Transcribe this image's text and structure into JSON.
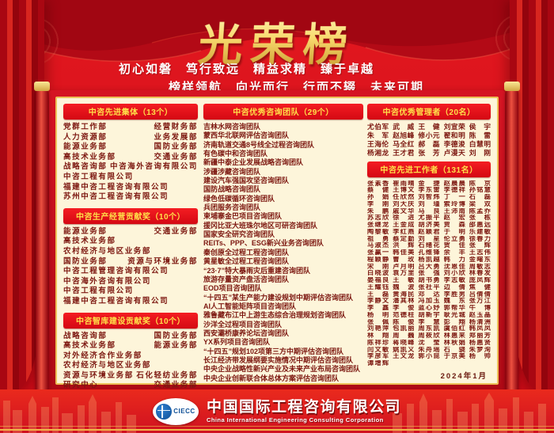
{
  "title": "光荣榜",
  "slogan_line1": "初心如磐　笃行致远　精益求精　臻于卓越",
  "slogan_line2": "榜样领航　向光而行　行而不辍　未来可期",
  "date": "2024年1月",
  "colors": {
    "background_red": "#d60f1c",
    "panel_cream": "#fdf5da",
    "pill_red": "#e60914",
    "pill_text_yellow": "#ffe049",
    "body_text_maroon": "#7c1710",
    "gold_frame": "#ecc158",
    "logo_blue": "#0e4f96"
  },
  "sections": {
    "advanced_groups": {
      "header": "中咨先进集体（13个）",
      "rows": [
        [
          "党群工作部",
          "经营财务部"
        ],
        [
          "人力资源部",
          "业务发展部"
        ],
        [
          "能源业务部",
          "国防业务部"
        ],
        [
          "高技术业务部",
          "交通业务部"
        ],
        [
          "战略咨询部",
          "中咨海外咨询有限公司"
        ],
        [
          "中咨工程有限公司"
        ],
        [
          "福建中咨工程咨询有限公司"
        ],
        [
          "苏州中咨工程咨询有限公司"
        ]
      ]
    },
    "production_award": {
      "header": "中咨生产经营贡献奖（10个）",
      "rows": [
        [
          "能源业务部",
          "交通业务部"
        ],
        [
          "高技术业务部"
        ],
        [
          "农村经济与地区业务部"
        ],
        [
          "国防业务部",
          "资源与环境业务部"
        ],
        [
          "中咨工程管理咨询有限公司"
        ],
        [
          "中咨海外咨询有限公司"
        ],
        [
          "中咨工程有限公司"
        ],
        [
          "福建中咨工程咨询有限公司"
        ]
      ]
    },
    "thinktank_award": {
      "header": "中咨智库建设贡献奖（10个）",
      "rows": [
        [
          "战略咨询部",
          "国防业务部"
        ],
        [
          "高技术业务部",
          "能源业务部"
        ],
        [
          "对外经济合作业务部"
        ],
        [
          "农村经济与地区业务部"
        ],
        [
          "资源与环境业务部",
          "石化轻纺业务部"
        ],
        [
          "研究中心",
          "交通业务部"
        ]
      ]
    },
    "excellent_teams": {
      "header": "中咨优秀咨询团队（29个）",
      "items": [
        "吉林水网咨询团队",
        "蒙西华北联网评估咨询团队",
        "济南轨道交通8号线全过程咨询团队",
        "有色碳中和咨询团队",
        "新疆中泰企业发展战略咨询团队",
        "涉疆涉藏咨询团队",
        "建设汽车强国攻坚咨询团队",
        "国防战略咨询团队",
        "绿色低碳循环咨询团队",
        "兵团服务咨询团队",
        "柬埔寨金巴项目咨询团队",
        "援冈比亚大班珠尔地区可研咨询团队",
        "国家安全研究咨询团队",
        "REITs、PPP、ESG新兴业务咨询团队",
        "秦创原全过程工程咨询团队",
        "黄星敏全过程工程咨询团队",
        "“23·7”特大暴雨灾后重建咨询团队",
        "旅游存量资产盘活咨询团队",
        "EOD项目咨询团队",
        "“十四五”某生产能力建设规划中期评估咨询团队",
        "AI人工智能矩阵项目咨询团队",
        "雅鲁藏布江中上游生态综合治理规划咨询团队",
        "沙洋全过程项目咨询团队",
        "西安灞桥康养论坛咨询团队",
        "YX系列项目咨询团队",
        "“十四五”规划102项第三方中期评估咨询团队",
        "长江经济带发展纲要实施情况中期评估咨询团队",
        "中央企业战略性新兴产业及未来产业布局咨询团队",
        "中央企业创新联合体总体方案评估咨询团队"
      ]
    },
    "excellent_managers": {
      "header": "中咨优秀管理者（20名）",
      "names": [
        "尤伯军",
        "武威",
        "王健",
        "刘宣荣",
        "侯宇",
        "朱军",
        "赵旭峰",
        "修小元",
        "翟和明",
        "陈雷",
        "王海伦",
        "马全红",
        "郝磊",
        "李德浚",
        "白慧明",
        "杨湘龙",
        "王才君",
        "张芳",
        "卢漫天",
        "刘刚"
      ]
    },
    "advanced_workers": {
      "header": "中咨先进工作者（131名）",
      "names": [
        "张素香",
        "崔雨晴",
        "金捷",
        "赵晨晨",
        "陈京",
        "蔡健",
        "王博文",
        "李东雷",
        "李德祥",
        "孙铭慧",
        "孙娟",
        "任欣然",
        "刘智炜",
        "丁一",
        "石磊",
        "李刚",
        "刘大庆",
        "刘瑾",
        "索玲博",
        "梁双",
        "朱鹏",
        "戚文华",
        "马良",
        "王沛南",
        "陈孟乔",
        "苏志欣",
        "徐进",
        "尤振平",
        "赵宏",
        "张栋",
        "张继龙",
        "王金成",
        "胡济美",
        "贾森",
        "邵惠远",
        "陶黎敏",
        "李红燕",
        "赵颖君",
        "于明",
        "乐建敏",
        "祖勇",
        "蔡定勤",
        "刘星",
        "伦立勇",
        "徐春力",
        "马淑杰",
        "洪辉",
        "石绪花",
        "贺佳",
        "张辉",
        "张赢一",
        "韩佳美",
        "孔维锋",
        "余丰",
        "王志伟",
        "程颖静",
        "曹玫",
        "杨凯越",
        "韩力",
        "金曙东",
        "宋刚",
        "卢月明",
        "吕大勇",
        "沈恩佳",
        "周敏志",
        "白晓波",
        "袁万里",
        "张强",
        "刘小欣",
        "林春发",
        "晏福良",
        "王敏",
        "胡书勇",
        "李志敏",
        "庞凤辉",
        "王耀钰",
        "魏波",
        "张社平",
        "边倩",
        "焦健",
        "王磊",
        "黄海民",
        "邓达",
        "李胜男",
        "吕倩倩",
        "李静文",
        "潘其林",
        "冯加玉",
        "魏东",
        "张万江",
        "李鑫",
        "李俊",
        "蓝心妤",
        "郭帮华",
        "牛博",
        "杨明",
        "范德柱",
        "胡新宇",
        "耿光城",
        "赵玉晶",
        "张佩",
        "陈俊",
        "李慧",
        "彭翔",
        "杨清洲",
        "刘艳萍",
        "包凯丽",
        "周东凯",
        "虞佰红",
        "韩凤凤",
        "林翔",
        "周巍",
        "周莜欣",
        "林惠来",
        "郑丽芳",
        "陈祥珍",
        "蒋晓峰",
        "沈莹",
        "林秋娟",
        "杨惠贤",
        "闫文敏",
        "姚凯义",
        "朱舟瑶",
        "石骁",
        "朱梦洵",
        "李彦军",
        "王文龙",
        "郭小昆",
        "于京美",
        "杨帅",
        "谭增辉"
      ]
    }
  },
  "footer": {
    "logo_text": "CIECC",
    "company_cn": "中国国际工程咨询有限公司",
    "company_en": "China International Engineering Consulting Corporation"
  }
}
